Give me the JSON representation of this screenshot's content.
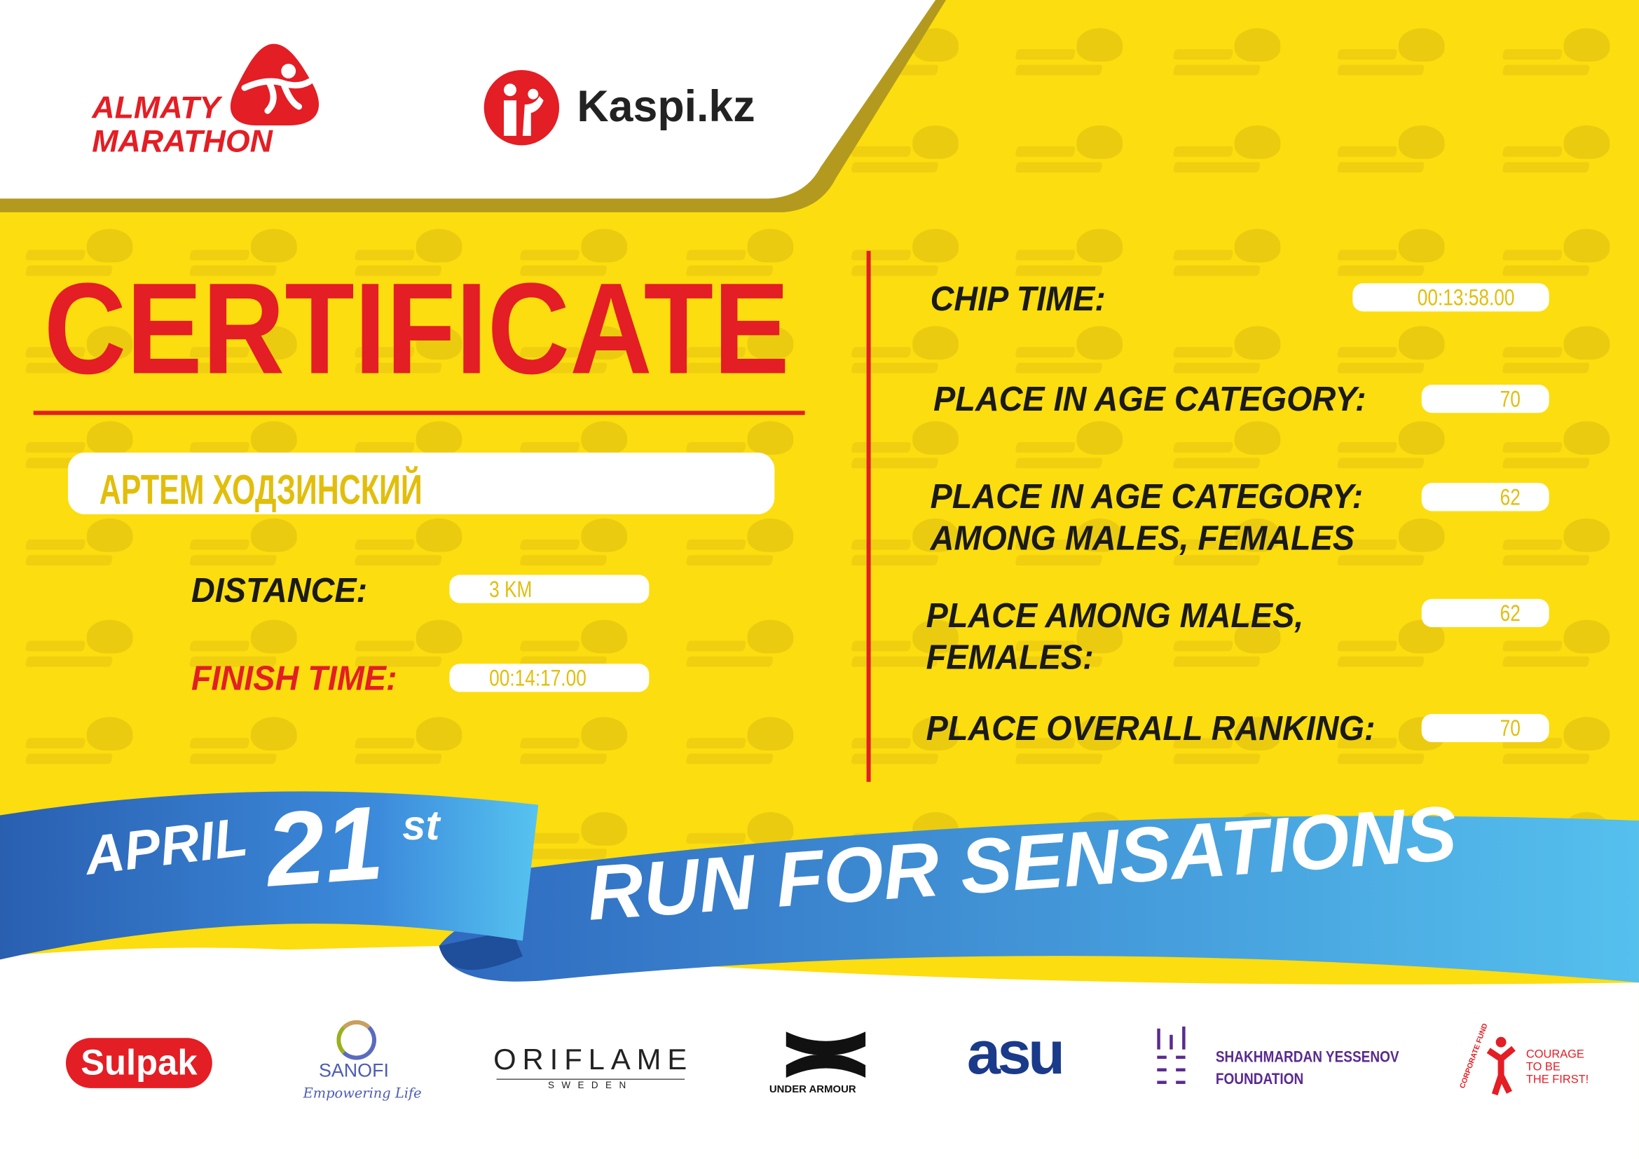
{
  "watermark": "ALMATY MARATHON",
  "header": {
    "logo_line1": "ALMATY",
    "logo_line2": "MARATHON",
    "sponsor_main": "Kaspi.kz"
  },
  "title": "CERTIFICATE",
  "participant": {
    "name": "АРТЕМ ХОДЗИНСКИЙ"
  },
  "left_fields": [
    {
      "label": "DISTANCE:",
      "value": "3 KM"
    },
    {
      "label": "FINISH TIME:",
      "value": "00:14:17.00"
    }
  ],
  "right_fields": [
    {
      "label": "CHIP TIME:",
      "value": "00:13:58.00"
    },
    {
      "label": "PLACE IN AGE CATEGORY:",
      "value": "70"
    },
    {
      "label_line1": "PLACE IN AGE CATEGORY:",
      "label_line2": "AMONG MALES, FEMALES",
      "value": "62"
    },
    {
      "label_line1": "PLACE AMONG MALES,",
      "label_line2": "FEMALES:",
      "value": "62"
    },
    {
      "label": "PLACE OVERALL RANKING:",
      "value": "70"
    }
  ],
  "banner": {
    "month": "APRIL",
    "day": "21",
    "suffix": "st",
    "slogan": "RUN FOR SENSATIONS"
  },
  "sponsors": {
    "sulpak": "Sulpak",
    "sanofi": "SANOFI",
    "sanofi_tag": "Empowering Life",
    "oriflame": "ORIFLAME",
    "oriflame_sub": "SWEDEN",
    "under_armour": "UNDER ARMOUR",
    "asu": "asu",
    "yessenov_1": "SHAKHMARDAN YESSENOV",
    "yessenov_2": "FOUNDATION",
    "fund_arc": "CORPORATE FUND",
    "fund_1": "COURAGE",
    "fund_2": "TO BE",
    "fund_3": "THE FIRST!"
  },
  "colors": {
    "yellow": "#FCDD0F",
    "red": "#E31E24",
    "blue": "#2E78C8",
    "light_blue": "#4FB8EC",
    "value_text": "#E2BE0C"
  }
}
